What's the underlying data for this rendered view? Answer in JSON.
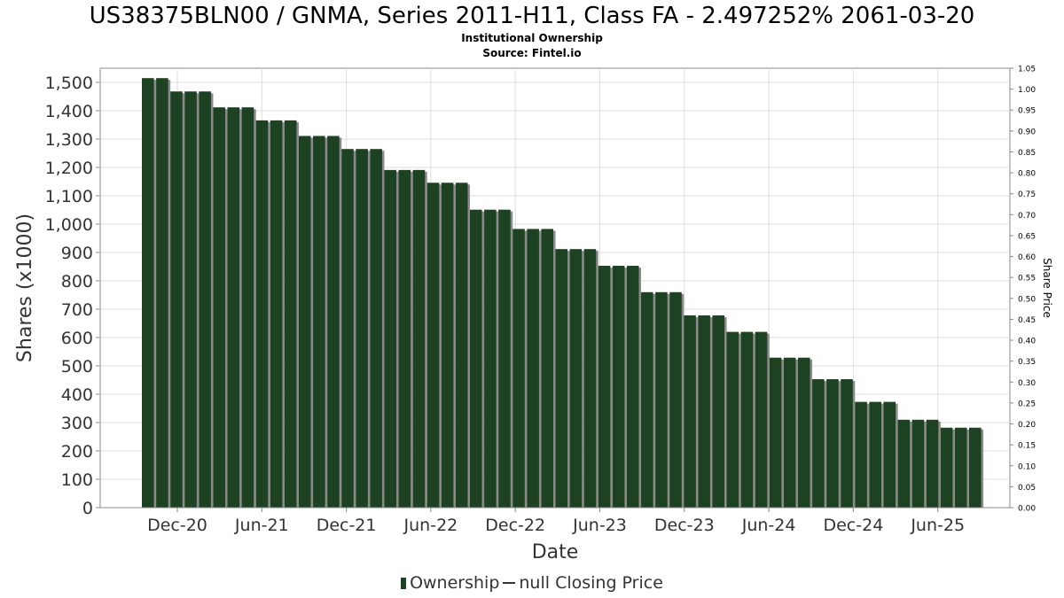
{
  "title": "US38375BLN00 / GNMA, Series 2011-H11, Class FA - 2.497252% 2061-03-20",
  "subtitle1": "Institutional Ownership",
  "subtitle2": "Source: Fintel.io",
  "colors": {
    "bar": "#1d4222",
    "bar_shadow": "#8a8a8a",
    "grid": "#dddddd",
    "axis": "#888888"
  },
  "chart_data": {
    "type": "bar",
    "xlabel": "Date",
    "ylabel": "Shares (x1000)",
    "y2label": "Share Price",
    "ylim": [
      0,
      1550
    ],
    "y2lim": [
      0,
      1.05
    ],
    "yticks": [
      "0",
      "100",
      "200",
      "300",
      "400",
      "500",
      "600",
      "700",
      "800",
      "900",
      "1,000",
      "1,100",
      "1,200",
      "1,300",
      "1,400",
      "1,500"
    ],
    "y2ticks": [
      "0.00",
      "0.05",
      "0.10",
      "0.15",
      "0.20",
      "0.25",
      "0.30",
      "0.35",
      "0.40",
      "0.45",
      "0.50",
      "0.55",
      "0.60",
      "0.65",
      "0.70",
      "0.75",
      "0.80",
      "0.85",
      "0.90",
      "0.95",
      "1.00",
      "1.05"
    ],
    "xticks": [
      "Dec-20",
      "Jun-21",
      "Dec-21",
      "Jun-22",
      "Dec-22",
      "Jun-23",
      "Dec-23",
      "Jun-24",
      "Dec-24",
      "Jun-25"
    ],
    "grid": true,
    "legend_position": "bottom",
    "series": [
      {
        "name": "Ownership",
        "values": [
          1515,
          1515,
          1468,
          1468,
          1468,
          1412,
          1412,
          1412,
          1366,
          1366,
          1366,
          1311,
          1311,
          1311,
          1265,
          1265,
          1265,
          1191,
          1191,
          1191,
          1146,
          1146,
          1146,
          1051,
          1051,
          1051,
          983,
          983,
          983,
          912,
          912,
          912,
          853,
          853,
          853,
          760,
          760,
          760,
          678,
          678,
          678,
          620,
          620,
          620,
          529,
          529,
          529,
          453,
          453,
          453,
          373,
          373,
          373,
          310,
          310,
          310,
          282,
          282,
          282
        ]
      },
      {
        "name": "null Closing Price",
        "values": []
      }
    ]
  }
}
